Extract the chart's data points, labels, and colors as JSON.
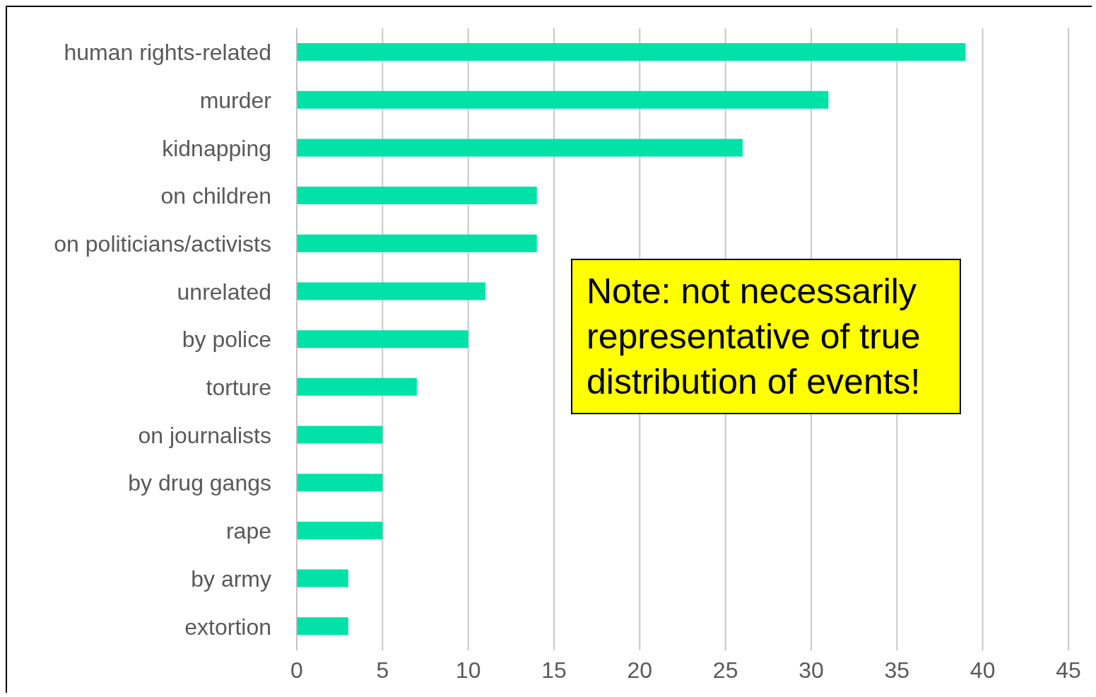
{
  "chart_data": {
    "type": "bar",
    "orientation": "horizontal",
    "categories": [
      "human rights-related",
      "murder",
      "kidnapping",
      "on children",
      "on politicians/activists",
      "unrelated",
      "by police",
      "torture",
      "on journalists",
      "by drug gangs",
      "rape",
      "by army",
      "extortion"
    ],
    "values": [
      39,
      31,
      26,
      14,
      14,
      11,
      10,
      7,
      5,
      5,
      5,
      3,
      3
    ],
    "color": "#00e2a8",
    "xlim": [
      0,
      45
    ],
    "xticks": [
      0,
      5,
      10,
      15,
      20,
      25,
      30,
      35,
      40,
      45
    ],
    "grid": "x",
    "legend": false,
    "annotations": [
      "Note: not necessarily representative of true distribution of events!"
    ]
  }
}
